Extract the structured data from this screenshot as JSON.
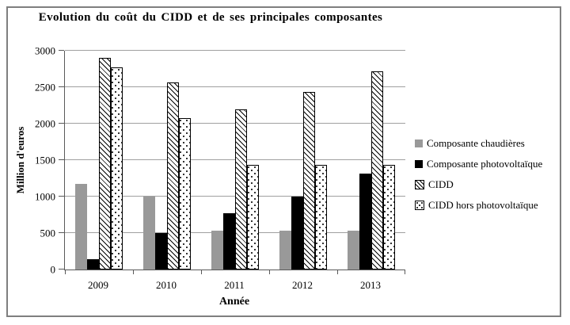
{
  "chart_data": {
    "type": "bar",
    "title": "Evolution du coût du CIDD et de ses principales composantes",
    "xlabel": "Année",
    "ylabel": "Million d'euros",
    "categories": [
      "2009",
      "2010",
      "2011",
      "2012",
      "2013"
    ],
    "series": [
      {
        "key": "composante-chaudieres",
        "name": "Composante chaudières",
        "style": "gray",
        "values": [
          1170,
          1000,
          530,
          530,
          530
        ]
      },
      {
        "key": "composante-photovoltaique",
        "name": "Composante photovoltaïque",
        "style": "black",
        "values": [
          140,
          500,
          770,
          1000,
          1320
        ]
      },
      {
        "key": "cidd",
        "name": "CIDD",
        "style": "hatch",
        "values": [
          2900,
          2570,
          2200,
          2430,
          2720
        ]
      },
      {
        "key": "cidd-hors-photovoltaique",
        "name": "CIDD hors photovoltaïque",
        "style": "dots",
        "values": [
          2770,
          2080,
          1430,
          1430,
          1430
        ]
      }
    ],
    "ylim": [
      0,
      3000
    ],
    "ytick_step": 500,
    "grid": true,
    "legend_position": "right"
  },
  "colors": {
    "bar_gray": "#999999",
    "bar_black": "#000000",
    "pattern_line": "#000000",
    "grid_line": "#a0a0a0",
    "axis_line": "#595959",
    "frame_border": "#7f7f7f",
    "background": "#ffffff"
  }
}
